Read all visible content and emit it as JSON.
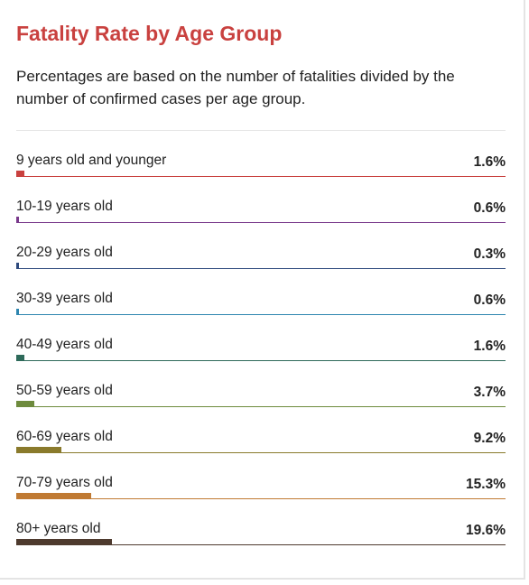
{
  "chart_data": {
    "type": "bar",
    "orientation": "horizontal",
    "title": "Fatality Rate by Age Group",
    "subtitle": "Percentages are based on the number of fatalities divided by the number of confirmed cases per age group.",
    "xlim": [
      0,
      100
    ],
    "categories": [
      "9 years old and younger",
      "10-19 years old",
      "20-29 years old",
      "30-39 years old",
      "40-49 years old",
      "50-59 years old",
      "60-69 years old",
      "70-79 years old",
      "80+ years old"
    ],
    "values": [
      1.6,
      0.6,
      0.3,
      0.6,
      1.6,
      3.7,
      9.2,
      15.3,
      19.6
    ],
    "value_labels": [
      "1.6%",
      "0.6%",
      "0.3%",
      "0.6%",
      "1.6%",
      "3.7%",
      "9.2%",
      "15.3%",
      "19.6%"
    ],
    "colors": [
      "#c9413f",
      "#7a3a8c",
      "#2e4a7d",
      "#2f86b0",
      "#2e6a5a",
      "#6e8b3d",
      "#8a7a2c",
      "#c07a33",
      "#4e3a2e"
    ]
  }
}
